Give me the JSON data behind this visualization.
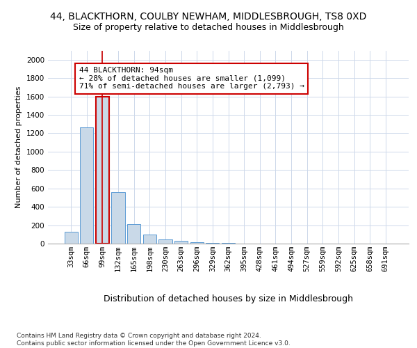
{
  "title1": "44, BLACKTHORN, COULBY NEWHAM, MIDDLESBROUGH, TS8 0XD",
  "title2": "Size of property relative to detached houses in Middlesbrough",
  "xlabel": "Distribution of detached houses by size in Middlesbrough",
  "ylabel": "Number of detached properties",
  "footnote": "Contains HM Land Registry data © Crown copyright and database right 2024.\nContains public sector information licensed under the Open Government Licence v3.0.",
  "categories": [
    "33sqm",
    "66sqm",
    "99sqm",
    "132sqm",
    "165sqm",
    "198sqm",
    "230sqm",
    "263sqm",
    "296sqm",
    "329sqm",
    "362sqm",
    "395sqm",
    "428sqm",
    "461sqm",
    "494sqm",
    "527sqm",
    "559sqm",
    "592sqm",
    "625sqm",
    "658sqm",
    "691sqm"
  ],
  "values": [
    130,
    1265,
    1600,
    560,
    215,
    95,
    45,
    30,
    18,
    8,
    8,
    0,
    0,
    0,
    0,
    0,
    0,
    0,
    0,
    0,
    0
  ],
  "bar_color": "#c9d9e8",
  "bar_edge_color": "#5b9bd5",
  "highlight_index": 2,
  "highlight_bar_edge_color": "#cc0000",
  "annotation_text": "44 BLACKTHORN: 94sqm\n← 28% of detached houses are smaller (1,099)\n71% of semi-detached houses are larger (2,793) →",
  "annotation_box_color": "#ffffff",
  "annotation_box_edge_color": "#cc0000",
  "ylim": [
    0,
    2100
  ],
  "yticks": [
    0,
    200,
    400,
    600,
    800,
    1000,
    1200,
    1400,
    1600,
    1800,
    2000
  ],
  "title1_fontsize": 10,
  "title2_fontsize": 9,
  "xlabel_fontsize": 9,
  "ylabel_fontsize": 8,
  "tick_fontsize": 7.5,
  "annot_fontsize": 8,
  "bg_color": "#ffffff",
  "grid_color": "#cdd8ea"
}
